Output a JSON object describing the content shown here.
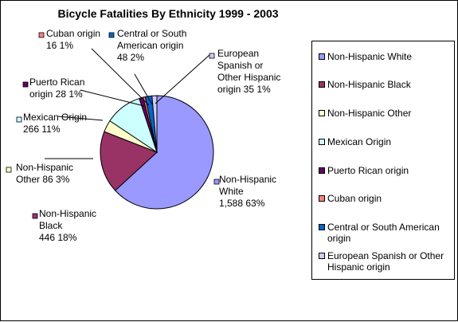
{
  "chart_data": {
    "type": "pie",
    "title": "Bicycle Fatalities By Ethnicity 1999 - 2003",
    "slices": [
      {
        "name": "Non-Hispanic White",
        "value": 1588,
        "percent": "63%",
        "color": "#9999ff",
        "label_lines": [
          "Non-Hispanic",
          "White",
          "1,588  63%"
        ]
      },
      {
        "name": "Non-Hispanic Black",
        "value": 446,
        "percent": "18%",
        "color": "#993366",
        "label_lines": [
          "Non-Hispanic",
          "Black",
          "446  18%"
        ]
      },
      {
        "name": "Non-Hispanic Other",
        "value": 86,
        "percent": "3%",
        "color": "#ffffcc",
        "label_lines": [
          "Non-Hispanic",
          "Other  86  3%"
        ]
      },
      {
        "name": "Mexican Origin",
        "value": 266,
        "percent": "11%",
        "color": "#ccffff",
        "label_lines": [
          "Mexican Origin",
          "266  11%"
        ]
      },
      {
        "name": "Puerto Rican origin",
        "value": 28,
        "percent": "1%",
        "color": "#660066",
        "label_lines": [
          "Puerto Rican",
          "origin  28  1%"
        ]
      },
      {
        "name": "Cuban origin",
        "value": 16,
        "percent": "1%",
        "color": "#ff8080",
        "label_lines": [
          "Cuban origin",
          "16  1%"
        ]
      },
      {
        "name": "Central or South American origin",
        "value": 48,
        "percent": "2%",
        "color": "#0066cc",
        "label_lines": [
          "Central or South",
          "American origin",
          "48  2%"
        ]
      },
      {
        "name": "European Spanish or Other Hispanic origin",
        "value": 35,
        "percent": "1%",
        "color": "#ccccff",
        "label_lines": [
          "European",
          "Spanish or",
          "Other Hispanic",
          "origin  35  1%"
        ]
      }
    ],
    "legend": {
      "position": "right",
      "items": [
        {
          "lines": [
            "Non-Hispanic White"
          ],
          "color": "#9999ff"
        },
        {
          "lines": [
            "Non-Hispanic Black"
          ],
          "color": "#993366"
        },
        {
          "lines": [
            "Non-Hispanic Other"
          ],
          "color": "#ffffcc"
        },
        {
          "lines": [
            "Mexican Origin"
          ],
          "color": "#ccffff"
        },
        {
          "lines": [
            "Puerto Rican origin"
          ],
          "color": "#660066"
        },
        {
          "lines": [
            "Cuban origin"
          ],
          "color": "#ff8080"
        },
        {
          "lines": [
            "Central or South American",
            "origin"
          ],
          "color": "#0066cc"
        },
        {
          "lines": [
            "European Spanish or Other",
            "Hispanic origin"
          ],
          "color": "#ccccff"
        }
      ]
    }
  }
}
